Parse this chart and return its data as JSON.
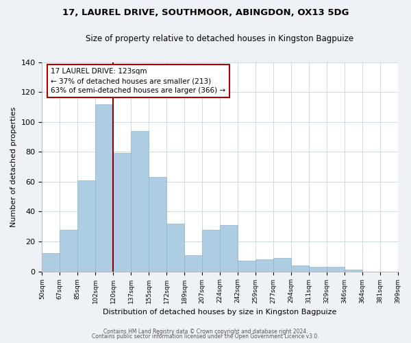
{
  "title": "17, LAUREL DRIVE, SOUTHMOOR, ABINGDON, OX13 5DG",
  "subtitle": "Size of property relative to detached houses in Kingston Bagpuize",
  "xlabel": "Distribution of detached houses by size in Kingston Bagpuize",
  "ylabel": "Number of detached properties",
  "bin_labels": [
    "50sqm",
    "67sqm",
    "85sqm",
    "102sqm",
    "120sqm",
    "137sqm",
    "155sqm",
    "172sqm",
    "189sqm",
    "207sqm",
    "224sqm",
    "242sqm",
    "259sqm",
    "277sqm",
    "294sqm",
    "311sqm",
    "329sqm",
    "346sqm",
    "364sqm",
    "381sqm",
    "399sqm"
  ],
  "bar_heights": [
    12,
    28,
    61,
    112,
    79,
    94,
    63,
    32,
    11,
    28,
    31,
    7,
    8,
    9,
    4,
    3,
    3,
    1,
    0,
    0
  ],
  "bar_color": "#aecde3",
  "vline_x_index": 4,
  "vline_color": "#8b0000",
  "annotation_text": "17 LAUREL DRIVE: 123sqm\n← 37% of detached houses are smaller (213)\n63% of semi-detached houses are larger (366) →",
  "annotation_box_color": "#ffffff",
  "annotation_box_edge_color": "#aa0000",
  "ylim": [
    0,
    140
  ],
  "yticks": [
    0,
    20,
    40,
    60,
    80,
    100,
    120,
    140
  ],
  "footer_line1": "Contains HM Land Registry data © Crown copyright and database right 2024.",
  "footer_line2": "Contains public sector information licensed under the Open Government Licence v3.0.",
  "bg_color": "#eef2f7",
  "plot_bg_color": "#ffffff",
  "grid_color": "#ccd9e8"
}
